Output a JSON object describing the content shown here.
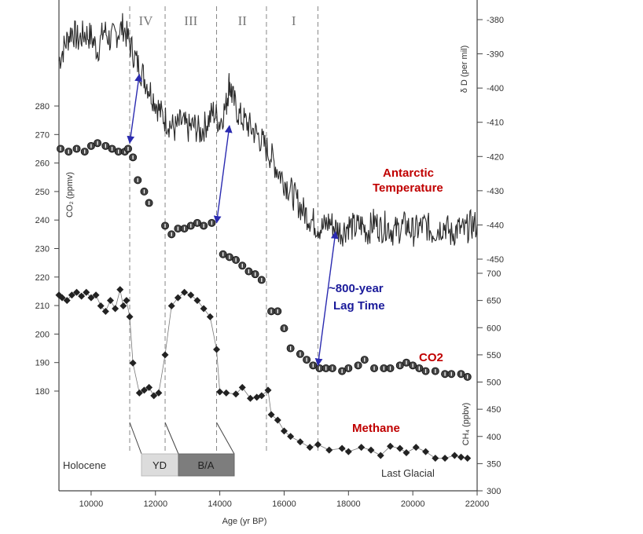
{
  "chart_data": {
    "type": "line",
    "x_axis": {
      "label": "Age (yr BP)",
      "range": [
        9000,
        22000
      ],
      "ticks": [
        10000,
        12000,
        14000,
        16000,
        18000,
        20000,
        22000
      ]
    },
    "y_axes": {
      "co2": {
        "label": "CO₂ (ppmv)",
        "range": [
          165,
          295
        ],
        "ticks": [
          180,
          190,
          200,
          210,
          220,
          230,
          240,
          250,
          260,
          270,
          280
        ]
      },
      "deltaD": {
        "label": "δ D (per mil)",
        "range": [
          -450,
          -375
        ],
        "ticks": [
          -380,
          -390,
          -400,
          -410,
          -420,
          -430,
          -440,
          -450
        ]
      },
      "ch4": {
        "label": "CH₄ (ppbv)",
        "range": [
          300,
          700
        ],
        "ticks": [
          300,
          350,
          400,
          450,
          500,
          550,
          600,
          650,
          700
        ]
      }
    },
    "period_lines": [
      11200,
      12300,
      13900,
      15450,
      17050
    ],
    "period_labels": [
      {
        "text": "IV",
        "x": 11700
      },
      {
        "text": "III",
        "x": 13100
      },
      {
        "text": "II",
        "x": 14700
      },
      {
        "text": "I",
        "x": 16300
      }
    ],
    "series": [
      {
        "name": "CO2",
        "axis": "co2",
        "marker": "circle",
        "color": "#333333",
        "x": [
          9050,
          9300,
          9550,
          9800,
          10000,
          10200,
          10450,
          10650,
          10850,
          11050,
          11150,
          11300,
          11450,
          11650,
          11800,
          12300,
          12500,
          12700,
          12900,
          13100,
          13300,
          13500,
          13750,
          14100,
          14300,
          14500,
          14700,
          14900,
          15100,
          15300,
          15600,
          15800,
          16000,
          16200,
          16500,
          16700,
          16900,
          17100,
          17300,
          17500,
          17800,
          18000,
          18300,
          18500,
          18800,
          19100,
          19300,
          19600,
          19800,
          20000,
          20200,
          20400,
          20700,
          21000,
          21200,
          21500,
          21700
        ],
        "y": [
          265,
          264,
          265,
          264,
          266,
          267,
          266,
          265,
          264,
          264,
          265,
          262,
          254,
          250,
          246,
          238,
          235,
          237,
          237,
          238,
          239,
          238,
          239,
          228,
          227,
          226,
          224,
          222,
          221,
          219,
          208,
          208,
          202,
          195,
          193,
          191,
          189,
          188,
          188,
          188,
          187,
          188,
          189,
          191,
          188,
          188,
          188,
          189,
          190,
          189,
          188,
          187,
          187,
          186,
          186,
          186,
          185
        ]
      },
      {
        "name": "Methane",
        "axis": "ch4",
        "marker": "diamond",
        "color": "#222222",
        "x": [
          9000,
          9100,
          9250,
          9400,
          9550,
          9700,
          9850,
          10000,
          10150,
          10300,
          10450,
          10600,
          10750,
          10900,
          11000,
          11100,
          11200,
          11300,
          11500,
          11650,
          11800,
          11950,
          12100,
          12300,
          12500,
          12700,
          12900,
          13100,
          13300,
          13500,
          13700,
          13900,
          14000,
          14200,
          14500,
          14700,
          14950,
          15150,
          15300,
          15500,
          15600,
          15800,
          16000,
          16200,
          16500,
          16800,
          17050,
          17400,
          17800,
          18000,
          18400,
          18700,
          19000,
          19300,
          19600,
          19800,
          20100,
          20400,
          20700,
          21000,
          21300,
          21500,
          21700
        ],
        "y": [
          660,
          655,
          650,
          660,
          665,
          658,
          665,
          655,
          660,
          640,
          630,
          650,
          635,
          670,
          640,
          650,
          620,
          535,
          480,
          485,
          490,
          475,
          480,
          550,
          640,
          655,
          665,
          660,
          650,
          635,
          620,
          560,
          482,
          480,
          478,
          490,
          470,
          472,
          475,
          485,
          440,
          430,
          410,
          400,
          390,
          380,
          385,
          375,
          378,
          372,
          380,
          375,
          365,
          382,
          378,
          370,
          380,
          372,
          360,
          360,
          365,
          362,
          360
        ]
      },
      {
        "name": "Antarctic Temperature",
        "axis": "deltaD",
        "marker": "none",
        "color": "#2b2b2b",
        "x": [
          9000,
          9200,
          9400,
          9600,
          9800,
          10000,
          10200,
          10400,
          10600,
          10800,
          11000,
          11200,
          11400,
          11600,
          11800,
          12000,
          12200,
          12400,
          12600,
          12800,
          13000,
          13200,
          13400,
          13600,
          13800,
          14000,
          14200,
          14300,
          14400,
          14600,
          14800,
          15000,
          15200,
          15400,
          15600,
          15800,
          16000,
          16200,
          16400,
          16600,
          16800,
          17000,
          17200,
          17400,
          17600,
          17800,
          18000,
          18200,
          18400,
          18600,
          18800,
          19000,
          19200,
          19400,
          19600,
          19800,
          20000,
          20200,
          20400,
          20600,
          20800,
          21000,
          21200,
          21400,
          21600,
          21800,
          22000
        ],
        "y": [
          -392,
          -387,
          -383,
          -386,
          -384,
          -385,
          -389,
          -383,
          -386,
          -384,
          -382,
          -387,
          -392,
          -396,
          -400,
          -404,
          -408,
          -410,
          -412,
          -410,
          -412,
          -411,
          -413,
          -410,
          -407,
          -410,
          -405,
          -398,
          -403,
          -408,
          -410,
          -412,
          -414,
          -417,
          -420,
          -424,
          -427,
          -430,
          -433,
          -436,
          -438,
          -440,
          -441,
          -439,
          -441,
          -442,
          -440,
          -441,
          -440,
          -442,
          -439,
          -441,
          -440,
          -442,
          -441,
          -440,
          -442,
          -441,
          -440,
          -442,
          -441,
          -440,
          -443,
          -441,
          -442,
          -440,
          -440
        ]
      }
    ],
    "lag_arrows": [
      {
        "from_x": 11200,
        "from_axis": "co2",
        "from_y": 267,
        "to_x": 11500,
        "to_axis": "deltaD",
        "to_y": -396
      },
      {
        "from_x": 13900,
        "from_axis": "co2",
        "from_y": 239,
        "to_x": 14300,
        "to_axis": "deltaD",
        "to_y": -411
      },
      {
        "from_x": 17050,
        "from_axis": "co2",
        "from_y": 189,
        "to_x": 17600,
        "to_axis": "deltaD",
        "to_y": -442
      }
    ],
    "annotations": {
      "temperature_line1": "Antarctic",
      "temperature_line2": "Temperature",
      "co2": "CO2",
      "methane": "Methane",
      "lag_line1": "~800-year",
      "lag_line2": "Lag Time"
    },
    "period_bands": {
      "holocene": "Holocene",
      "yd": "YD",
      "ba": "B/A",
      "last_glacial": "Last Glacial"
    },
    "colors": {
      "annotation_red": "#c00000",
      "annotation_blue": "#1a1a9a",
      "arrow": "#2a2ab0",
      "yd_band": "#dcdcdc",
      "ba_band": "#7d7d7d"
    }
  }
}
